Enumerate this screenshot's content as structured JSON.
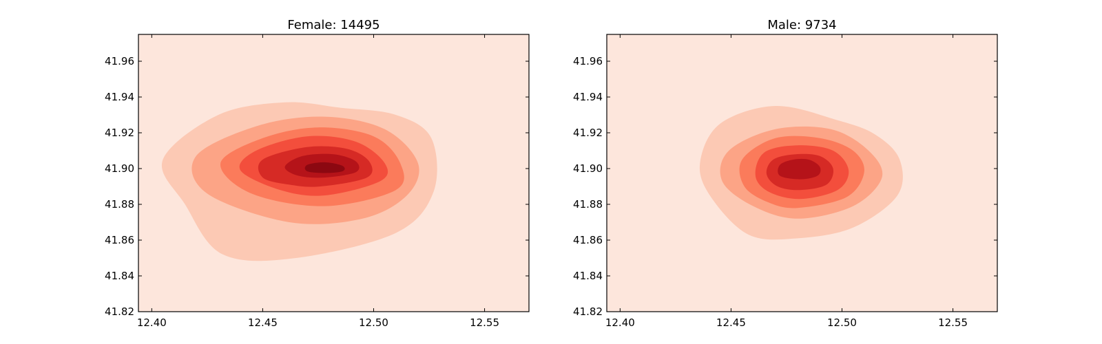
{
  "chart_data": [
    {
      "type": "heatmap",
      "subtype": "kde-filled-contour",
      "title": "Female: 14495",
      "xlabel": "",
      "ylabel": "",
      "xlim": [
        12.394,
        12.57
      ],
      "ylim": [
        41.82,
        41.975
      ],
      "xticks": [
        "12.40",
        "12.45",
        "12.50",
        "12.55"
      ],
      "yticks": [
        "41.82",
        "41.84",
        "41.86",
        "41.88",
        "41.90",
        "41.92",
        "41.94",
        "41.96"
      ],
      "grid": false,
      "colormap": [
        "#fde6dc",
        "#fcc9b4",
        "#fca486",
        "#fb7b5b",
        "#f34e3c",
        "#d62a25",
        "#b51319",
        "#8c0811"
      ],
      "peak": {
        "x": 12.478,
        "y": 41.9
      },
      "contours": [
        {
          "level": 1,
          "points": [
            [
              12.432,
              41.852
            ],
            [
              12.465,
              41.85
            ],
            [
              12.51,
              41.864
            ],
            [
              12.527,
              41.887
            ],
            [
              12.526,
              41.917
            ],
            [
              12.51,
              41.93
            ],
            [
              12.485,
              41.934
            ],
            [
              12.46,
              41.937
            ],
            [
              12.43,
              41.93
            ],
            [
              12.405,
              41.905
            ],
            [
              12.415,
              41.88
            ]
          ]
        },
        {
          "level": 2,
          "points": [
            [
              12.462,
              41.87
            ],
            [
              12.495,
              41.872
            ],
            [
              12.515,
              41.885
            ],
            [
              12.52,
              41.903
            ],
            [
              12.505,
              41.922
            ],
            [
              12.478,
              41.929
            ],
            [
              12.448,
              41.924
            ],
            [
              12.42,
              41.907
            ],
            [
              12.425,
              41.886
            ]
          ]
        },
        {
          "level": 3,
          "points": [
            [
              12.478,
              41.879
            ],
            [
              12.51,
              41.888
            ],
            [
              12.512,
              41.903
            ],
            [
              12.5,
              41.918
            ],
            [
              12.475,
              41.923
            ],
            [
              12.45,
              41.917
            ],
            [
              12.431,
              41.903
            ],
            [
              12.445,
              41.886
            ]
          ]
        },
        {
          "level": 4,
          "points": [
            [
              12.478,
              41.885
            ],
            [
              12.503,
              41.893
            ],
            [
              12.505,
              41.903
            ],
            [
              12.492,
              41.915
            ],
            [
              12.47,
              41.918
            ],
            [
              12.447,
              41.91
            ],
            [
              12.44,
              41.899
            ],
            [
              12.458,
              41.888
            ]
          ]
        },
        {
          "level": 5,
          "points": [
            [
              12.476,
              41.89
            ],
            [
              12.497,
              41.895
            ],
            [
              12.498,
              41.904
            ],
            [
              12.488,
              41.911
            ],
            [
              12.47,
              41.912
            ],
            [
              12.45,
              41.905
            ],
            [
              12.45,
              41.895
            ],
            [
              12.462,
              41.891
            ]
          ]
        },
        {
          "level": 6,
          "points": [
            [
              12.478,
              41.895
            ],
            [
              12.492,
              41.898
            ],
            [
              12.492,
              41.904
            ],
            [
              12.482,
              41.908
            ],
            [
              12.468,
              41.907
            ],
            [
              12.46,
              41.901
            ],
            [
              12.466,
              41.896
            ]
          ]
        },
        {
          "level": 7,
          "points": [
            [
              12.478,
              41.8975
            ],
            [
              12.486,
              41.8985
            ],
            [
              12.486,
              41.9015
            ],
            [
              12.478,
              41.9035
            ],
            [
              12.47,
              41.902
            ],
            [
              12.47,
              41.8985
            ]
          ]
        }
      ]
    },
    {
      "type": "heatmap",
      "subtype": "kde-filled-contour",
      "title": "Male: 9734",
      "xlabel": "",
      "ylabel": "",
      "xlim": [
        12.394,
        12.57
      ],
      "ylim": [
        41.82,
        41.975
      ],
      "xticks": [
        "12.40",
        "12.45",
        "12.50",
        "12.55"
      ],
      "yticks": [
        "41.82",
        "41.84",
        "41.86",
        "41.88",
        "41.90",
        "41.92",
        "41.94",
        "41.96"
      ],
      "grid": false,
      "colormap": [
        "#fde6dc",
        "#fcc9b4",
        "#fca486",
        "#fb7b5b",
        "#f34e3c",
        "#d62a25",
        "#b51319",
        "#8c0811"
      ],
      "peak": {
        "x": 12.48,
        "y": 41.9
      },
      "contours": [
        {
          "level": 1,
          "points": [
            [
              12.458,
              41.863
            ],
            [
              12.48,
              41.861
            ],
            [
              12.505,
              41.867
            ],
            [
              12.525,
              41.885
            ],
            [
              12.526,
              41.905
            ],
            [
              12.515,
              41.919
            ],
            [
              12.498,
              41.927
            ],
            [
              12.47,
              41.935
            ],
            [
              12.445,
              41.925
            ],
            [
              12.436,
              41.903
            ],
            [
              12.441,
              41.884
            ]
          ]
        },
        {
          "level": 2,
          "points": [
            [
              12.48,
              41.872
            ],
            [
              12.505,
              41.879
            ],
            [
              12.518,
              41.895
            ],
            [
              12.512,
              41.91
            ],
            [
              12.495,
              41.922
            ],
            [
              12.47,
              41.922
            ],
            [
              12.449,
              41.91
            ],
            [
              12.446,
              41.893
            ],
            [
              12.46,
              41.879
            ]
          ]
        },
        {
          "level": 3,
          "points": [
            [
              12.48,
              41.878
            ],
            [
              12.502,
              41.884
            ],
            [
              12.51,
              41.898
            ],
            [
              12.505,
              41.91
            ],
            [
              12.49,
              41.917
            ],
            [
              12.47,
              41.917
            ],
            [
              12.455,
              41.905
            ],
            [
              12.456,
              41.89
            ],
            [
              12.467,
              41.881
            ]
          ]
        },
        {
          "level": 4,
          "points": [
            [
              12.481,
              41.883
            ],
            [
              12.498,
              41.888
            ],
            [
              12.503,
              41.899
            ],
            [
              12.496,
              41.91
            ],
            [
              12.48,
              41.913
            ],
            [
              12.465,
              41.909
            ],
            [
              12.461,
              41.896
            ],
            [
              12.467,
              41.887
            ]
          ]
        },
        {
          "level": 5,
          "points": [
            [
              12.481,
              41.888
            ],
            [
              12.493,
              41.891
            ],
            [
              12.496,
              41.9
            ],
            [
              12.49,
              41.907
            ],
            [
              12.479,
              41.908
            ],
            [
              12.469,
              41.905
            ],
            [
              12.466,
              41.897
            ],
            [
              12.471,
              41.89
            ]
          ]
        },
        {
          "level": 6,
          "points": [
            [
              12.481,
              41.894
            ],
            [
              12.489,
              41.896
            ],
            [
              12.49,
              41.901
            ],
            [
              12.485,
              41.905
            ],
            [
              12.478,
              41.905
            ],
            [
              12.472,
              41.902
            ],
            [
              12.472,
              41.896
            ]
          ]
        }
      ]
    }
  ]
}
